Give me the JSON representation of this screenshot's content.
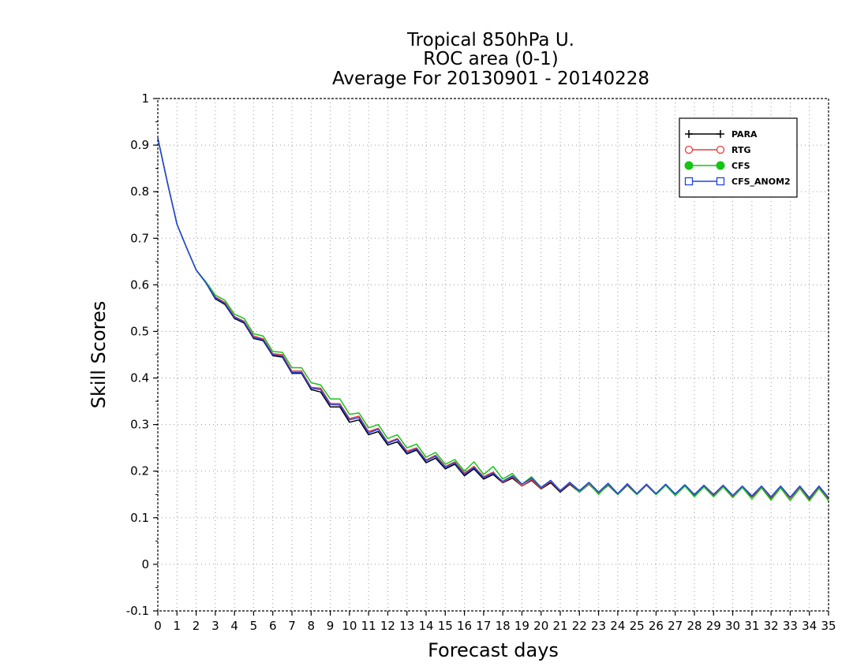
{
  "chart_data": {
    "type": "line",
    "title": [
      "Tropical 850hPa U.",
      "ROC area (0-1)",
      "Average For 20130901 - 20140228"
    ],
    "xlabel": "Forecast days",
    "ylabel": "Skill Scores",
    "xlim": [
      0,
      35
    ],
    "ylim": [
      -0.1,
      1
    ],
    "xticks": [
      0,
      1,
      2,
      3,
      4,
      5,
      6,
      7,
      8,
      9,
      10,
      11,
      12,
      13,
      14,
      15,
      16,
      17,
      18,
      19,
      20,
      21,
      22,
      23,
      24,
      25,
      26,
      27,
      28,
      29,
      30,
      31,
      32,
      33,
      34,
      35
    ],
    "yticks": [
      -0.1,
      0,
      0.1,
      0.2,
      0.3,
      0.4,
      0.5,
      0.6,
      0.7,
      0.8,
      0.9,
      1
    ],
    "ytick_labels": [
      "-0.1",
      "0",
      "0.1",
      "0.2",
      "0.3",
      "0.4",
      "0.5",
      "0.6",
      "0.7",
      "0.8",
      "0.9",
      "1"
    ],
    "grid": true,
    "legend_position": "top-right",
    "x": [
      0,
      0.5,
      1,
      1.5,
      2,
      2.5,
      3,
      3.5,
      4,
      4.5,
      5,
      5.5,
      6,
      6.5,
      7,
      7.5,
      8,
      8.5,
      9,
      9.5,
      10,
      10.5,
      11,
      11.5,
      12,
      12.5,
      13,
      13.5,
      14,
      14.5,
      15,
      15.5,
      16,
      16.5,
      17,
      17.5,
      18,
      18.5,
      19,
      19.5,
      20,
      20.5,
      21,
      21.5,
      22,
      22.5,
      23,
      23.5,
      24,
      24.5,
      25,
      25.5,
      26,
      26.5,
      27,
      27.5,
      28,
      28.5,
      29,
      29.5,
      30,
      30.5,
      31,
      31.5,
      32,
      32.5,
      33,
      33.5,
      34,
      34.5,
      35
    ],
    "series": [
      {
        "name": "PARA",
        "color": "#000000",
        "marker": "plus",
        "values": [
          0.915,
          0.82,
          0.73,
          0.68,
          0.632,
          0.605,
          0.57,
          0.558,
          0.528,
          0.518,
          0.485,
          0.48,
          0.448,
          0.445,
          0.41,
          0.41,
          0.375,
          0.37,
          0.338,
          0.338,
          0.305,
          0.31,
          0.278,
          0.285,
          0.256,
          0.263,
          0.237,
          0.245,
          0.218,
          0.228,
          0.205,
          0.215,
          0.19,
          0.205,
          0.183,
          0.193,
          0.175,
          0.185,
          0.168,
          0.18,
          0.162,
          0.175,
          0.155,
          0.172,
          0.155,
          0.172,
          0.152,
          0.17,
          0.15,
          0.17,
          0.15,
          0.17,
          0.15,
          0.17,
          0.148,
          0.168,
          0.148,
          0.168,
          0.148,
          0.168,
          0.145,
          0.165,
          0.145,
          0.165,
          0.142,
          0.165,
          0.142,
          0.165,
          0.14,
          0.165,
          0.14
        ]
      },
      {
        "name": "RTG",
        "color": "#e83a3a",
        "marker": "circle-open",
        "values": [
          0.915,
          0.82,
          0.73,
          0.68,
          0.632,
          0.605,
          0.574,
          0.562,
          0.532,
          0.522,
          0.49,
          0.484,
          0.452,
          0.45,
          0.415,
          0.415,
          0.38,
          0.378,
          0.345,
          0.345,
          0.313,
          0.318,
          0.285,
          0.292,
          0.262,
          0.27,
          0.243,
          0.25,
          0.224,
          0.234,
          0.21,
          0.22,
          0.196,
          0.21,
          0.188,
          0.198,
          0.176,
          0.188,
          0.168,
          0.182,
          0.163,
          0.178,
          0.157,
          0.174,
          0.156,
          0.172,
          0.153,
          0.171,
          0.151,
          0.171,
          0.151,
          0.17,
          0.151,
          0.17,
          0.15,
          0.169,
          0.149,
          0.168,
          0.149,
          0.168,
          0.146,
          0.166,
          0.146,
          0.166,
          0.143,
          0.166,
          0.142,
          0.166,
          0.141,
          0.165,
          0.141
        ]
      },
      {
        "name": "CFS",
        "color": "#16c416",
        "marker": "circle-filled",
        "values": [
          0.915,
          0.82,
          0.73,
          0.68,
          0.632,
          0.607,
          0.578,
          0.567,
          0.537,
          0.528,
          0.495,
          0.49,
          0.457,
          0.455,
          0.422,
          0.422,
          0.39,
          0.385,
          0.355,
          0.355,
          0.322,
          0.325,
          0.293,
          0.3,
          0.27,
          0.278,
          0.25,
          0.258,
          0.23,
          0.24,
          0.215,
          0.225,
          0.2,
          0.22,
          0.193,
          0.21,
          0.183,
          0.195,
          0.172,
          0.188,
          0.165,
          0.18,
          0.158,
          0.176,
          0.155,
          0.174,
          0.15,
          0.172,
          0.15,
          0.172,
          0.15,
          0.172,
          0.15,
          0.17,
          0.148,
          0.168,
          0.145,
          0.166,
          0.145,
          0.166,
          0.143,
          0.165,
          0.14,
          0.164,
          0.138,
          0.164,
          0.137,
          0.163,
          0.136,
          0.163,
          0.137
        ]
      },
      {
        "name": "CFS_ANOM2",
        "color": "#2244e6",
        "marker": "square-open",
        "values": [
          0.915,
          0.82,
          0.73,
          0.68,
          0.632,
          0.605,
          0.572,
          0.56,
          0.53,
          0.52,
          0.487,
          0.482,
          0.45,
          0.447,
          0.412,
          0.412,
          0.378,
          0.375,
          0.343,
          0.342,
          0.31,
          0.315,
          0.282,
          0.29,
          0.26,
          0.268,
          0.24,
          0.248,
          0.222,
          0.232,
          0.208,
          0.218,
          0.193,
          0.208,
          0.186,
          0.196,
          0.178,
          0.19,
          0.172,
          0.185,
          0.165,
          0.18,
          0.158,
          0.176,
          0.158,
          0.176,
          0.155,
          0.174,
          0.152,
          0.173,
          0.152,
          0.172,
          0.152,
          0.172,
          0.151,
          0.171,
          0.15,
          0.17,
          0.15,
          0.17,
          0.148,
          0.168,
          0.147,
          0.168,
          0.145,
          0.168,
          0.144,
          0.168,
          0.143,
          0.168,
          0.143
        ]
      }
    ]
  }
}
